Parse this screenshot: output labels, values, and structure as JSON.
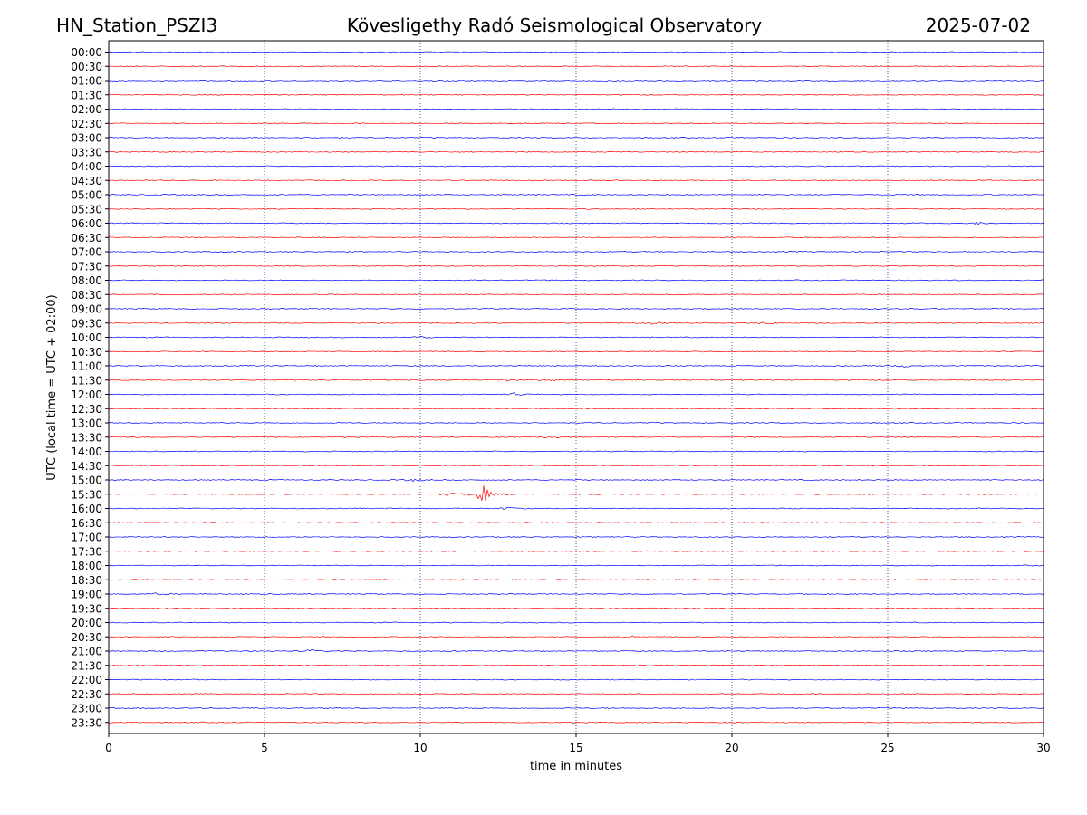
{
  "header": {
    "station": "HN_Station_PSZI3",
    "observatory": "Kövesligethy Radó Seismological Observatory",
    "date": "2025-07-02"
  },
  "chart_data": {
    "type": "line",
    "title": "Kövesligethy Radó Seismological Observatory",
    "xlabel": "time in minutes",
    "ylabel": "UTC (local time = UTC + 02:00)",
    "xlim": [
      0,
      30
    ],
    "x_ticks": [
      "0",
      "5",
      "10",
      "15",
      "20",
      "25",
      "30"
    ],
    "x_gridlines": [
      5,
      10,
      15,
      20,
      25
    ],
    "grid": "vertical dotted",
    "series_colors": [
      "#0000ff",
      "#ff0000"
    ],
    "rows": [
      "00:00",
      "00:30",
      "01:00",
      "01:30",
      "02:00",
      "02:30",
      "03:00",
      "03:30",
      "04:00",
      "04:30",
      "05:00",
      "05:30",
      "06:00",
      "06:30",
      "07:00",
      "07:30",
      "08:00",
      "08:30",
      "09:00",
      "09:30",
      "10:00",
      "10:30",
      "11:00",
      "11:30",
      "12:00",
      "12:30",
      "13:00",
      "13:30",
      "14:00",
      "14:30",
      "15:00",
      "15:30",
      "16:00",
      "16:30",
      "17:00",
      "17:30",
      "18:00",
      "18:30",
      "19:00",
      "19:30",
      "20:00",
      "20:30",
      "21:00",
      "21:30",
      "22:00",
      "22:30",
      "23:00",
      "23:30"
    ],
    "events": [
      {
        "row": "15:30",
        "minute": 12.0,
        "amplitude": "large"
      },
      {
        "row": "15:30",
        "minute": 10.8,
        "amplitude": "small"
      },
      {
        "row": "10:00",
        "minute": 10.0,
        "amplitude": "small"
      },
      {
        "row": "09:30",
        "minute": 17.5,
        "amplitude": "small"
      },
      {
        "row": "09:30",
        "minute": 21.2,
        "amplitude": "small"
      },
      {
        "row": "11:00",
        "minute": 25.5,
        "amplitude": "small"
      },
      {
        "row": "15:00",
        "minute": 9.8,
        "amplitude": "small"
      },
      {
        "row": "06:00",
        "minute": 27.9,
        "amplitude": "small"
      },
      {
        "row": "11:30",
        "minute": 12.7,
        "amplitude": "small"
      },
      {
        "row": "11:30",
        "minute": 14.0,
        "amplitude": "small"
      },
      {
        "row": "12:00",
        "minute": 13.0,
        "amplitude": "small"
      },
      {
        "row": "16:00",
        "minute": 12.8,
        "amplitude": "small"
      },
      {
        "row": "20:30",
        "minute": 16.8,
        "amplitude": "small"
      },
      {
        "row": "21:00",
        "minute": 6.5,
        "amplitude": "small"
      },
      {
        "row": "19:00",
        "minute": 1.6,
        "amplitude": "small"
      },
      {
        "row": "13:30",
        "minute": 14.2,
        "amplitude": "small"
      }
    ]
  }
}
